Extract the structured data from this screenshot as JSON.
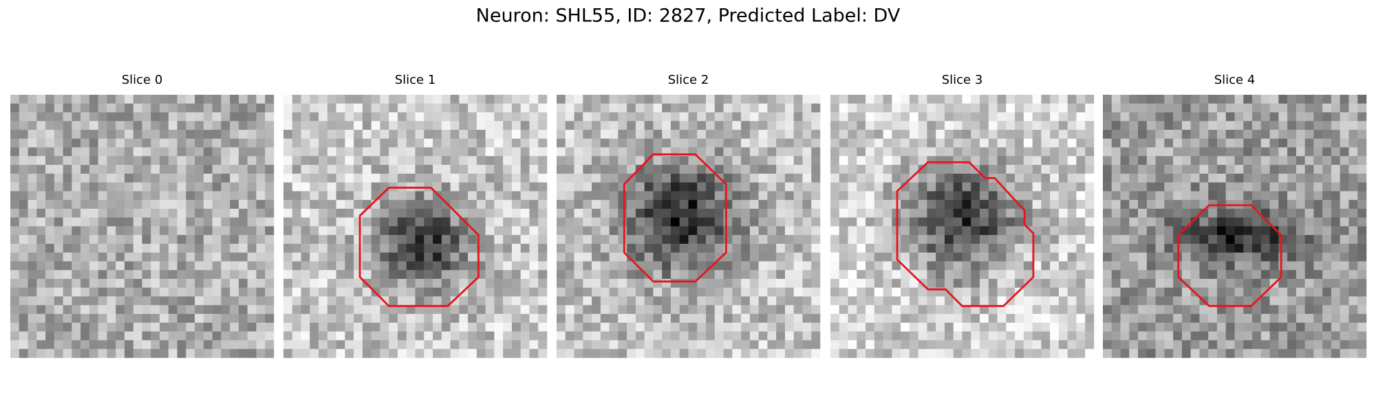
{
  "header": {
    "title": "Neuron: SHL55, ID: 2827, Predicted Label: DV"
  },
  "panels": [
    {
      "title": "Slice 0"
    },
    {
      "title": "Slice 1"
    },
    {
      "title": "Slice 2"
    },
    {
      "title": "Slice 3"
    },
    {
      "title": "Slice 4"
    }
  ]
}
